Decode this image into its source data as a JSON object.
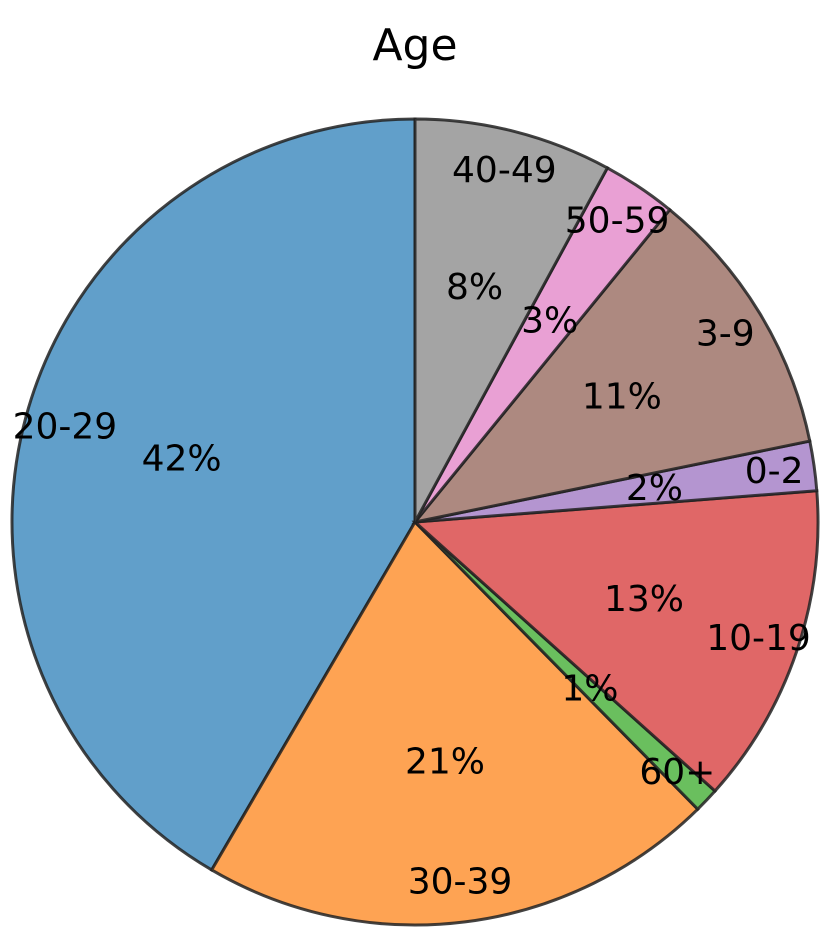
{
  "chart_data": {
    "type": "pie",
    "title": "Age",
    "start_angle_deg": 90,
    "direction": "counterclockwise",
    "slices": [
      {
        "label": "20-29",
        "value": 42,
        "pct_label": "42%",
        "color": "#619fca"
      },
      {
        "label": "30-39",
        "value": 21,
        "pct_label": "21%",
        "color": "#fea353"
      },
      {
        "label": "60+",
        "value": 1,
        "pct_label": "1%",
        "color": "#6abf5e"
      },
      {
        "label": "10-19",
        "value": 13,
        "pct_label": "13%",
        "color": "#e06767"
      },
      {
        "label": "0-2",
        "value": 2,
        "pct_label": "2%",
        "color": "#b495d0"
      },
      {
        "label": "3-9",
        "value": 11,
        "pct_label": "11%",
        "color": "#ad8980"
      },
      {
        "label": "50-59",
        "value": 3,
        "pct_label": "3%",
        "color": "#e9a0d4"
      },
      {
        "label": "40-49",
        "value": 8,
        "pct_label": "8%",
        "color": "#a4a4a4"
      }
    ]
  }
}
